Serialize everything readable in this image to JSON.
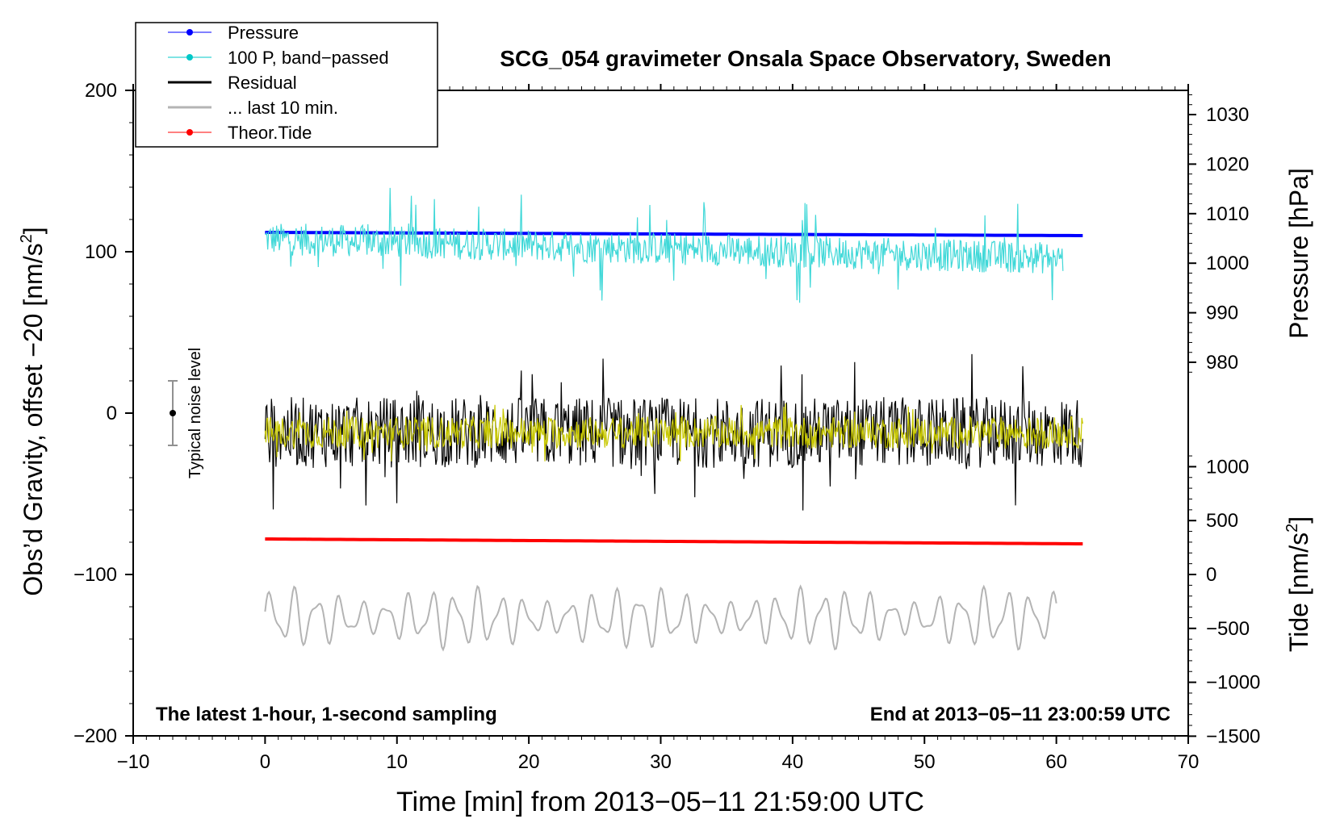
{
  "chart_data": {
    "type": "line",
    "title": "SCG_054 gravimeter Onsala Space Observatory, Sweden",
    "xlabel": "Time [min] from 2013−05−11 21:59:00 UTC",
    "ylabel_left": "Obs’d Gravity, offset −20 [nm/s",
    "ylabel_left_sup": "2",
    "ylabel_left_close": "]",
    "ylabel_right_pressure": "Pressure [hPa]",
    "ylabel_right_tide": "Tide [nm/s",
    "ylabel_right_tide_sup": "2",
    "ylabel_right_tide_close": "]",
    "xlim": [
      -10,
      70
    ],
    "ylim_left": [
      -200,
      200
    ],
    "x_ticks": [
      "−10",
      "0",
      "10",
      "20",
      "30",
      "40",
      "50",
      "60",
      "70"
    ],
    "x_tick_values": [
      -10,
      0,
      10,
      20,
      30,
      40,
      50,
      60,
      70
    ],
    "y_left_ticks": [
      "200",
      "100",
      "0",
      "−100",
      "−200"
    ],
    "y_left_tick_values": [
      200,
      100,
      0,
      -100,
      -200
    ],
    "pressure_axis": {
      "ticks": [
        "1030",
        "1020",
        "1010",
        "1000",
        "990",
        "980"
      ],
      "values": [
        1030,
        1020,
        1010,
        1000,
        990,
        980
      ]
    },
    "tide_axis": {
      "ticks": [
        "1000",
        "500",
        "0",
        "−500",
        "−1000",
        "−1500"
      ],
      "values": [
        1000,
        500,
        0,
        -500,
        -1000,
        -1500
      ]
    },
    "annotations": {
      "bottom_left": "The latest 1-hour, 1-second sampling",
      "bottom_right": "End at 2013−05−11 23:00:59 UTC",
      "noise_label": "Typical noise level",
      "noise_center": 0,
      "noise_halfwidth": 20,
      "noise_x": -7
    },
    "legend": [
      {
        "label": "Pressure",
        "color": "#0000ff",
        "marker": true
      },
      {
        "label": "100 P, band−passed",
        "color": "#00c8c8",
        "marker": true
      },
      {
        "label": "Residual",
        "color": "#000000",
        "marker": false
      },
      {
        "label": "... last 10 min.",
        "color": "#b4b4b4",
        "marker": false
      },
      {
        "label": "Theor.Tide",
        "color": "#ff0000",
        "marker": true
      }
    ],
    "series": [
      {
        "name": "Pressure",
        "color": "#0000ff",
        "kind": "trend",
        "x_range": [
          0,
          62
        ],
        "start": 112,
        "end": 110,
        "amp": 0
      },
      {
        "name": "100 P, band-passed",
        "color": "#40d8d8",
        "kind": "noise",
        "x_range": [
          0,
          60.5
        ],
        "center_start": 108,
        "center_end": 96,
        "amp": 10,
        "spike_amp": 34
      },
      {
        "name": "Residual",
        "color": "#000000",
        "kind": "noise",
        "x_range": [
          0,
          62
        ],
        "center_start": -12,
        "center_end": -12,
        "amp": 22,
        "spike_amp": 50
      },
      {
        "name": "Residual filtered",
        "color": "#c8c800",
        "kind": "noise",
        "x_range": [
          0,
          62
        ],
        "center_start": -12,
        "center_end": -12,
        "amp": 10,
        "spike_amp": 18
      },
      {
        "name": "Theor.Tide",
        "color": "#ff0000",
        "kind": "trend",
        "x_range": [
          0,
          62
        ],
        "start": -78,
        "end": -81,
        "amp": 0
      },
      {
        "name": "... last 10 min.",
        "color": "#b4b4b4",
        "kind": "wave",
        "x_range": [
          0,
          60
        ],
        "center": -127,
        "amp": 14
      }
    ]
  },
  "colors": {
    "frame": "#000000",
    "noise_bar": "#909090",
    "background": "#ffffff"
  }
}
